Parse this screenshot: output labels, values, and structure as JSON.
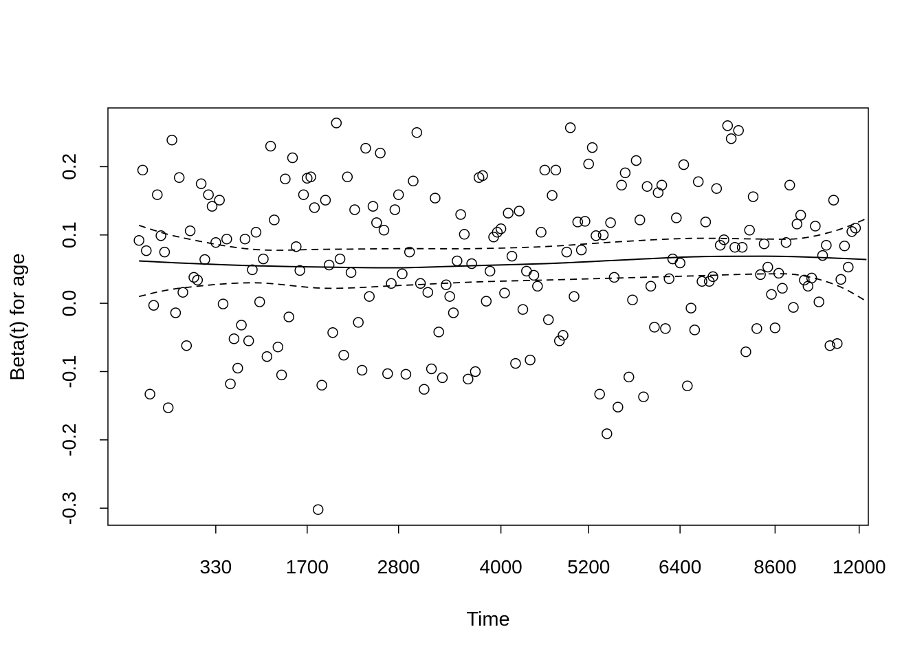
{
  "chart_data": {
    "type": "scatter",
    "xlabel": "Time",
    "ylabel": "Beta(t) for age",
    "ylim": [
      -0.325,
      0.286
    ],
    "x_ticks": [
      "330",
      "1700",
      "2800",
      "4000",
      "5200",
      "6400",
      "8600",
      "12000"
    ],
    "y_ticks": [
      -0.3,
      -0.2,
      -0.1,
      0.0,
      0.1,
      0.2
    ],
    "y_tick_labels": [
      "-0.3",
      "-0.2",
      "-0.1",
      "0.0",
      "0.1",
      "0.2"
    ],
    "box": true,
    "grid": false,
    "x_index_range": [
      0.5,
      208.5
    ],
    "points_x_index": [
      9,
      10,
      11,
      12,
      13,
      14,
      15,
      16,
      17,
      18,
      19,
      20,
      21,
      22,
      23,
      24,
      25,
      26,
      27,
      28,
      29,
      30,
      31,
      32,
      33,
      34,
      35,
      36,
      37,
      38,
      39,
      40,
      41,
      42,
      43,
      44,
      45,
      46,
      47,
      48,
      49,
      50,
      51,
      52,
      53,
      54,
      55,
      56,
      57,
      58,
      59,
      60,
      61,
      62,
      63,
      64,
      65,
      66,
      67,
      68,
      69,
      70,
      71,
      72,
      73,
      74,
      75,
      76,
      77,
      78,
      79,
      80,
      81,
      82,
      83,
      84,
      85,
      86,
      87,
      88,
      89,
      90,
      91,
      92,
      93,
      94,
      95,
      96,
      97,
      98,
      99,
      100,
      101,
      102,
      103,
      104,
      105,
      106,
      107,
      108,
      109,
      110,
      111,
      112,
      113,
      114,
      115,
      116,
      117,
      118,
      119,
      120,
      121,
      122,
      123,
      124,
      125,
      126,
      127,
      128,
      129,
      130,
      131,
      132,
      133,
      134,
      135,
      136,
      137,
      138,
      139,
      140,
      141,
      142,
      143,
      144,
      145,
      146,
      147,
      148,
      149,
      150,
      151,
      152,
      153,
      154,
      155,
      156,
      157,
      158,
      159,
      160,
      161,
      162,
      163,
      164,
      165,
      166,
      167,
      168,
      169,
      170,
      171,
      172,
      173,
      174,
      175,
      176,
      177,
      178,
      179,
      180,
      181,
      182,
      183,
      184,
      185,
      186,
      187,
      188,
      189,
      190,
      191,
      192,
      193,
      194,
      195,
      196,
      197,
      198,
      199,
      200,
      201,
      202,
      203,
      204,
      205,
      206,
      207,
      208
    ],
    "points_y": [
      0.092,
      0.195,
      0.077,
      -0.133,
      -0.003,
      0.159,
      0.099,
      0.075,
      -0.153,
      0.239,
      -0.014,
      0.184,
      0.016,
      -0.062,
      0.106,
      0.038,
      0.034,
      0.175,
      0.064,
      0.159,
      0.142,
      0.089,
      0.151,
      -0.001,
      0.094,
      -0.118,
      -0.052,
      -0.095,
      -0.032,
      0.094,
      -0.055,
      0.049,
      0.104,
      0.002,
      0.065,
      -0.078,
      0.23,
      0.122,
      -0.064,
      -0.105,
      0.182,
      -0.02,
      0.213,
      0.083,
      0.048,
      0.159,
      0.183,
      0.185,
      0.14,
      -0.302,
      -0.12,
      0.151,
      0.056,
      -0.043,
      0.264,
      0.065,
      -0.076,
      0.185,
      0.045,
      0.137,
      -0.028,
      -0.098,
      0.227,
      0.01,
      0.142,
      0.118,
      0.22,
      0.107,
      -0.103,
      0.029,
      0.137,
      0.159,
      0.043,
      -0.104,
      0.075,
      0.179,
      0.25,
      0.029,
      -0.126,
      0.016,
      -0.096,
      0.154,
      -0.042,
      -0.109,
      0.027,
      0.01,
      -0.014,
      0.062,
      0.13,
      0.101,
      -0.111,
      0.058,
      -0.1,
      0.184,
      0.187,
      0.003,
      0.047,
      0.097,
      0.104,
      0.109,
      0.015,
      0.132,
      0.069,
      -0.088,
      0.135,
      -0.009,
      0.047,
      -0.083,
      0.041,
      0.025,
      0.104,
      0.195,
      -0.024,
      0.158,
      0.195,
      -0.055,
      -0.047,
      0.075,
      0.257,
      0.01,
      0.119,
      0.078,
      0.12,
      0.204,
      0.228,
      0.099,
      -0.133,
      0.1,
      -0.191,
      0.118,
      0.038,
      -0.152,
      0.173,
      0.191,
      -0.108,
      0.005,
      0.209,
      0.122,
      -0.137,
      0.171,
      0.025,
      -0.035,
      0.162,
      0.173,
      -0.037,
      0.036,
      0.065,
      0.125,
      0.059,
      0.203,
      -0.121,
      -0.007,
      -0.039,
      0.178,
      0.032,
      0.119,
      0.032,
      0.039,
      0.168,
      0.085,
      0.093,
      0.26,
      0.241,
      0.082,
      0.253,
      0.082,
      -0.071,
      0.107,
      0.156,
      -0.037,
      0.042,
      0.087,
      0.053,
      0.013,
      -0.036,
      0.044,
      0.022,
      0.089,
      0.173,
      -0.006,
      0.116,
      0.129,
      0.034,
      0.025,
      0.037,
      0.113,
      0.002,
      0.07,
      0.085,
      -0.062,
      0.151,
      -0.059,
      0.035,
      0.084,
      0.053,
      0.105,
      0.11
    ],
    "fit": {
      "x_index": [
        9,
        20,
        40,
        60,
        80,
        100,
        120,
        140,
        160,
        180,
        190,
        200,
        208
      ],
      "y": [
        0.062,
        0.059,
        0.055,
        0.053,
        0.052,
        0.055,
        0.058,
        0.063,
        0.068,
        0.069,
        0.068,
        0.066,
        0.064
      ]
    },
    "ci_upper": {
      "x_index": [
        9,
        20,
        40,
        60,
        80,
        100,
        120,
        140,
        160,
        180,
        190,
        200,
        208
      ],
      "y": [
        0.114,
        0.097,
        0.079,
        0.079,
        0.08,
        0.08,
        0.083,
        0.09,
        0.095,
        0.094,
        0.095,
        0.107,
        0.124
      ]
    },
    "ci_lower": {
      "x_index": [
        9,
        20,
        40,
        60,
        80,
        100,
        120,
        140,
        160,
        180,
        190,
        200,
        208
      ],
      "y": [
        0.01,
        0.022,
        0.03,
        0.022,
        0.026,
        0.031,
        0.034,
        0.037,
        0.04,
        0.043,
        0.041,
        0.026,
        0.003
      ]
    },
    "x_tick_index": [
      30,
      55,
      80,
      108,
      132,
      157,
      183,
      206
    ],
    "colors": {
      "ink": "#000000",
      "background": "#ffffff"
    }
  }
}
